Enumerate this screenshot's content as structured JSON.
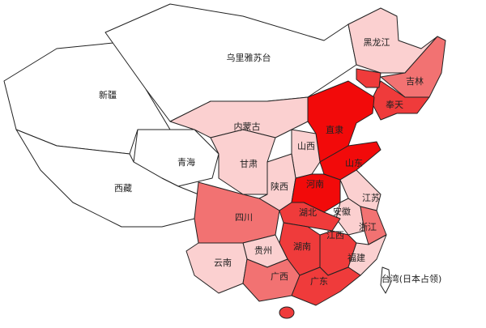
{
  "colors": {
    "none": "#ffffff",
    "low": "#fbd0d0",
    "mid": "#f27272",
    "high": "#ef3b3b",
    "max": "#f20a0a"
  },
  "provinces": [
    {
      "name": "新疆",
      "level": "none"
    },
    {
      "name": "乌里雅苏台",
      "level": "none"
    },
    {
      "name": "黑龙江",
      "level": "low"
    },
    {
      "name": "吉林",
      "level": "mid"
    },
    {
      "name": "奉天",
      "level": "high"
    },
    {
      "name": "直隶",
      "level": "max"
    },
    {
      "name": "内蒙古",
      "level": "low"
    },
    {
      "name": "青海",
      "level": "none"
    },
    {
      "name": "西藏",
      "level": "none"
    },
    {
      "name": "甘肃",
      "level": "low"
    },
    {
      "name": "山西",
      "level": "low"
    },
    {
      "name": "陕西",
      "level": "low"
    },
    {
      "name": "山东",
      "level": "max"
    },
    {
      "name": "河南",
      "level": "max"
    },
    {
      "name": "江苏",
      "level": "low"
    },
    {
      "name": "安徽",
      "level": "low"
    },
    {
      "name": "浙江",
      "level": "mid"
    },
    {
      "name": "四川",
      "level": "mid"
    },
    {
      "name": "湖北",
      "level": "high"
    },
    {
      "name": "湖南",
      "level": "high"
    },
    {
      "name": "江西",
      "level": "high"
    },
    {
      "name": "福建",
      "level": "low"
    },
    {
      "name": "贵州",
      "level": "low"
    },
    {
      "name": "云南",
      "level": "low"
    },
    {
      "name": "广西",
      "level": "mid"
    },
    {
      "name": "广东",
      "level": "high"
    },
    {
      "name": "台湾(日本占领)",
      "level": "none"
    }
  ]
}
